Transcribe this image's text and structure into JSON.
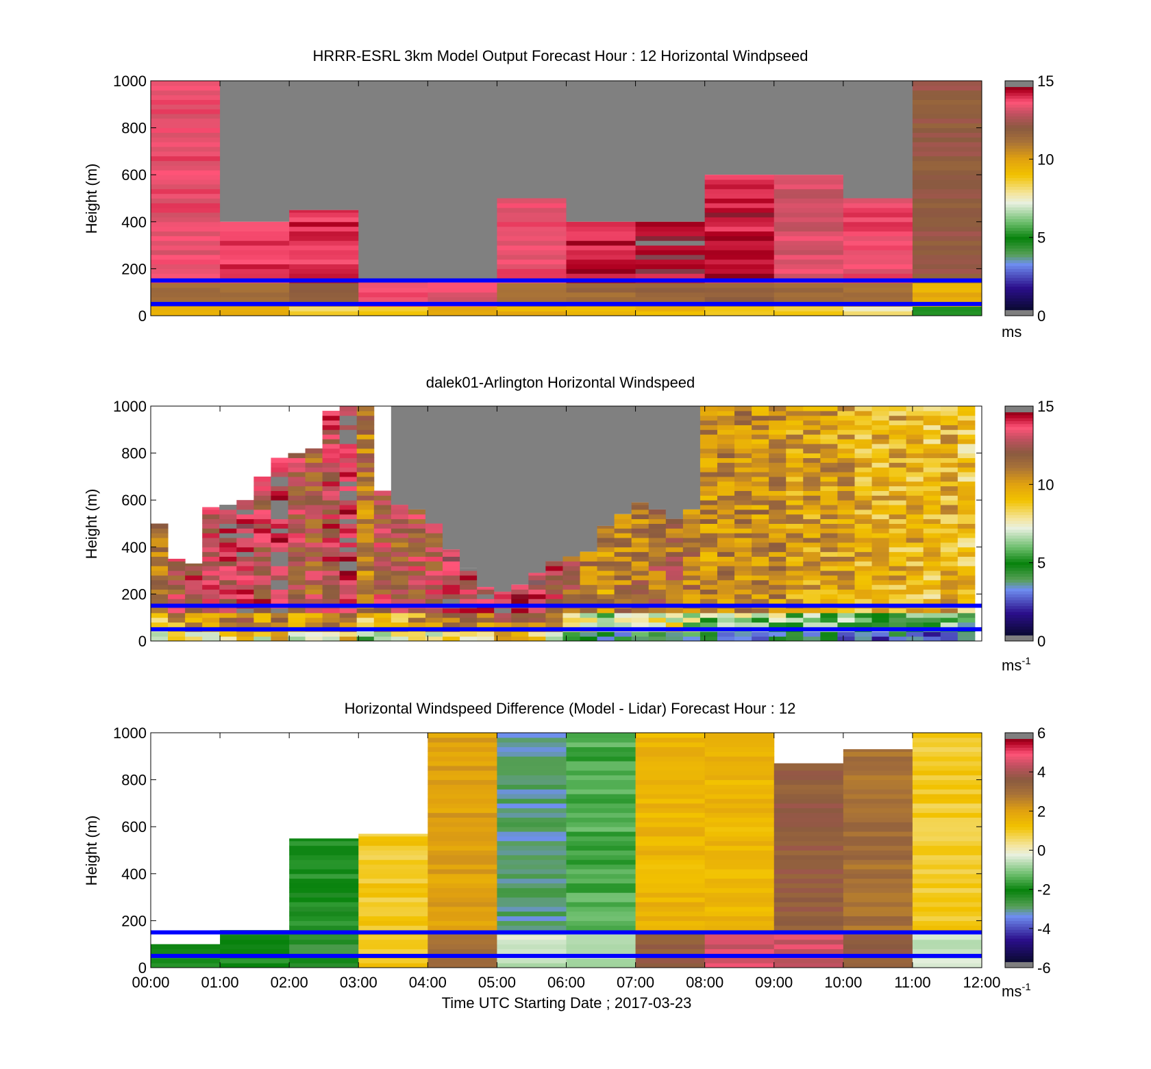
{
  "chart_data": [
    {
      "type": "heatmap",
      "title": "HRRR-ESRL 3km Model Output   Forecast Hour : 12 Horizontal Windpseed",
      "ylabel": "Height (m)",
      "xlabel": "",
      "xlim": [
        0,
        12
      ],
      "ylim": [
        0,
        1000
      ],
      "yticks": [
        "0",
        "200",
        "400",
        "600",
        "800",
        "1000"
      ],
      "colorbar": {
        "min": 0,
        "max": 15,
        "ticks": [
          "0",
          "5",
          "10",
          "15"
        ],
        "unit": "ms",
        "unit_sup": ""
      },
      "reference_lines_m": [
        50,
        150
      ],
      "hourly_tops_m": [
        1000,
        400,
        450,
        150,
        150,
        500,
        400,
        400,
        600,
        600,
        500,
        1000
      ],
      "hourly_values": [
        13.5,
        13.8,
        14.0,
        13.5,
        13.5,
        13.6,
        14.2,
        14.3,
        14.2,
        13.2,
        13.6,
        12.0
      ],
      "near_surface_values": [
        9.5,
        9.5,
        8.5,
        9.0,
        9.5,
        9.5,
        9.5,
        9.5,
        8.5,
        8.5,
        7.8,
        5.5
      ],
      "lower_layer_values": [
        11.5,
        11.5,
        11.5,
        13.5,
        13.5,
        11.5,
        11.5,
        11.5,
        11.5,
        11.5,
        11.5,
        9.5
      ]
    },
    {
      "type": "heatmap",
      "title": "dalek01-Arlington  Horizontal Windspeed",
      "ylabel": "Height (m)",
      "xlabel": "",
      "xlim": [
        0,
        12
      ],
      "ylim": [
        0,
        1000
      ],
      "yticks": [
        "0",
        "200",
        "400",
        "600",
        "800",
        "1000"
      ],
      "colorbar": {
        "min": 0,
        "max": 15,
        "ticks": [
          "0",
          "5",
          "10",
          "15"
        ],
        "unit": "ms",
        "unit_sup": "-1"
      },
      "reference_lines_m": [
        50,
        150
      ],
      "column_tops_m": [
        500,
        350,
        330,
        570,
        580,
        600,
        700,
        780,
        800,
        820,
        980,
        1000,
        1000,
        640,
        580,
        560,
        500,
        390,
        310,
        230,
        210,
        240,
        290,
        340,
        360,
        380,
        490,
        540,
        590,
        560,
        520,
        560,
        1000,
        1000,
        1000,
        1000,
        1000,
        1000,
        1000,
        1000,
        1000,
        1000,
        1000,
        1000,
        1000,
        1000,
        1000,
        1000
      ],
      "column_values": [
        11.5,
        12.5,
        13.0,
        13.0,
        13.5,
        14.0,
        13.0,
        14.0,
        12.5,
        12.0,
        13.0,
        14.0,
        11.0,
        12.5,
        12.0,
        12.5,
        12.5,
        13.5,
        13.5,
        13.5,
        14.0,
        13.8,
        13.5,
        13.0,
        11.5,
        11.0,
        10.5,
        11.0,
        11.0,
        11.5,
        11.5,
        11.0,
        10.5,
        10.5,
        10.5,
        10.5,
        10.5,
        10.0,
        10.0,
        10.0,
        10.0,
        9.5,
        9.5,
        9.5,
        9.5,
        9.0,
        9.5,
        9.0
      ]
    },
    {
      "type": "heatmap",
      "title": "Horizontal Windspeed Difference (Model - Lidar) Forecast Hour : 12",
      "ylabel": "Height (m)",
      "xlabel": "Time UTC  Starting Date ; 2017-03-23",
      "xlim": [
        0,
        12
      ],
      "ylim": [
        0,
        1000
      ],
      "xticks": [
        "00:00",
        "01:00",
        "02:00",
        "03:00",
        "04:00",
        "05:00",
        "06:00",
        "07:00",
        "08:00",
        "09:00",
        "10:00",
        "11:00",
        "12:00"
      ],
      "yticks": [
        "0",
        "200",
        "400",
        "600",
        "800",
        "1000"
      ],
      "colorbar": {
        "min": -6,
        "max": 6,
        "ticks": [
          "-6",
          "-4",
          "-2",
          "0",
          "2",
          "4",
          "6"
        ],
        "unit": "ms",
        "unit_sup": "-1"
      },
      "reference_lines_m": [
        50,
        150
      ],
      "hourly_tops_m": [
        100,
        160,
        550,
        570,
        1000,
        1000,
        1000,
        1000,
        1000,
        870,
        930,
        1000
      ],
      "hourly_values": [
        -2.0,
        -1.5,
        -2.0,
        1.0,
        2.0,
        -3.0,
        -1.5,
        1.5,
        1.5,
        3.5,
        3.0,
        1.0
      ],
      "lower_layer_values": [
        -2.0,
        -2.0,
        -2.5,
        1.0,
        3.0,
        -0.5,
        -0.5,
        3.5,
        4.5,
        4.5,
        3.5,
        -0.5
      ]
    }
  ]
}
